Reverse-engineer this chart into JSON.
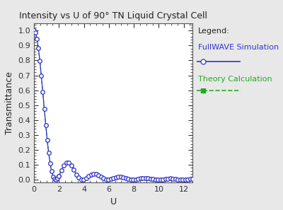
{
  "title": "Intensity vs U of 90° TN Liquid Crystal Cell",
  "xlabel": "U",
  "ylabel": "Transmittance",
  "xlim": [
    0,
    12.7
  ],
  "ylim": [
    -0.02,
    1.05
  ],
  "xticks": [
    0,
    2,
    4,
    6,
    8,
    10,
    12
  ],
  "yticks": [
    0.0,
    0.1,
    0.2,
    0.3,
    0.4,
    0.5,
    0.6,
    0.7,
    0.8,
    0.9,
    1.0
  ],
  "fullwave_color": "#3333cc",
  "theory_color": "#22aa22",
  "fig_bg_color": "#e8e8e8",
  "plot_bg_color": "#ffffff",
  "legend_title": "Legend:",
  "legend_label1": "FullWAVE Simulation",
  "legend_label2": "Theory Calculation",
  "figsize": [
    4.0,
    2.97
  ],
  "dpi": 100,
  "title_fontsize": 9,
  "label_fontsize": 9,
  "tick_fontsize": 8,
  "legend_fontsize": 8
}
